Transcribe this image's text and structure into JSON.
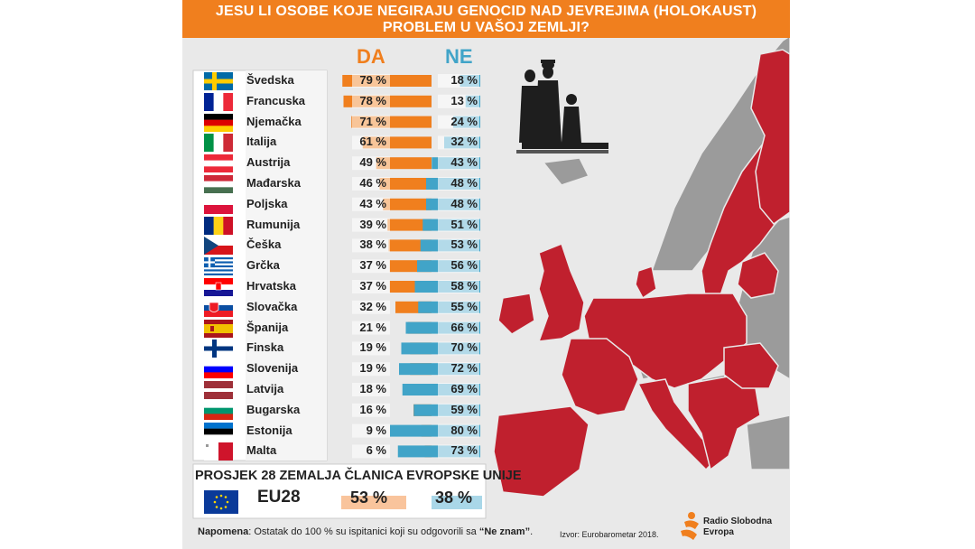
{
  "title": {
    "line1": "JESU LI OSOBE KOJE NEGIRAJU GENOCID NAD JEVREJIMA (HOLOKAUST)",
    "line2": "PROBLEM U VAŠOJ ZEMLJI?"
  },
  "colors": {
    "orange": "#f07f1e",
    "blue": "#41a4c8",
    "red_map": "#c0202e",
    "gray_map": "#9b9b9b",
    "background": "#e9e9e9"
  },
  "chart_data": {
    "type": "bar",
    "categories": [
      "Švedska",
      "Francuska",
      "Njemačka",
      "Italija",
      "Austrija",
      "Mađarska",
      "Poljska",
      "Rumunija",
      "Češka",
      "Grčka",
      "Hrvatska",
      "Slovačka",
      "Španija",
      "Finska",
      "Slovenija",
      "Latvija",
      "Bugarska",
      "Estonija",
      "Malta"
    ],
    "series": [
      {
        "name": "DA",
        "values": [
          79,
          78,
          71,
          61,
          49,
          46,
          43,
          39,
          38,
          37,
          37,
          32,
          21,
          19,
          19,
          18,
          16,
          9,
          6
        ]
      },
      {
        "name": "NE",
        "values": [
          18,
          13,
          24,
          32,
          43,
          48,
          48,
          51,
          53,
          56,
          58,
          55,
          66,
          70,
          72,
          69,
          59,
          80,
          73
        ]
      }
    ],
    "unit": "%",
    "average": {
      "title": "PROSJEK 28 ZEMALJA ČLANICA EVROPSKE UNIJE",
      "code": "EU28",
      "da": 53,
      "ne": 38
    }
  },
  "labels": {
    "da_header": "DA",
    "ne_header": "NE",
    "avg_da": "53 %",
    "avg_ne": "38 %"
  },
  "footer": {
    "note_label": "Napomena",
    "note_text": ": Ostatak do 100 % su ispitanici koji su odgovorili sa ",
    "note_quote": "“Ne znam”",
    "note_end": ".",
    "source": "Izvor: Eurobarometar 2018.",
    "brand_line1": "Radio Slobodna",
    "brand_line2": "Evropa"
  },
  "flag_icons": [
    "sweden-flag-icon",
    "france-flag-icon",
    "germany-flag-icon",
    "italy-flag-icon",
    "austria-flag-icon",
    "hungary-flag-icon",
    "poland-flag-icon",
    "romania-flag-icon",
    "czechia-flag-icon",
    "greece-flag-icon",
    "croatia-flag-icon",
    "slovakia-flag-icon",
    "spain-flag-icon",
    "finland-flag-icon",
    "slovenia-flag-icon",
    "latvia-flag-icon",
    "bulgaria-flag-icon",
    "estonia-flag-icon",
    "malta-flag-icon",
    "eu-flag-icon"
  ]
}
